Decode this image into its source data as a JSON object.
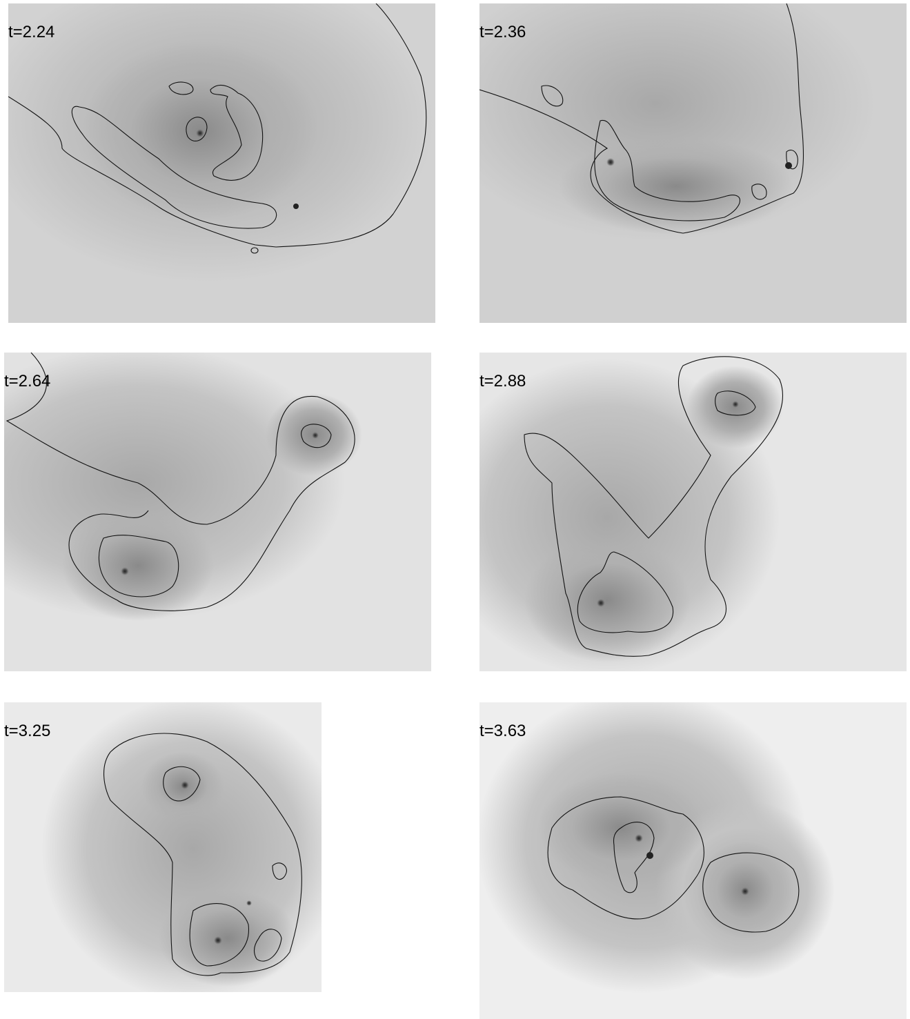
{
  "panels": [
    {
      "label": "t=2.24"
    },
    {
      "label": "t=2.36"
    },
    {
      "label": "t=2.64"
    },
    {
      "label": "t=2.88"
    },
    {
      "label": "t=3.25"
    },
    {
      "label": "t=3.63"
    }
  ]
}
